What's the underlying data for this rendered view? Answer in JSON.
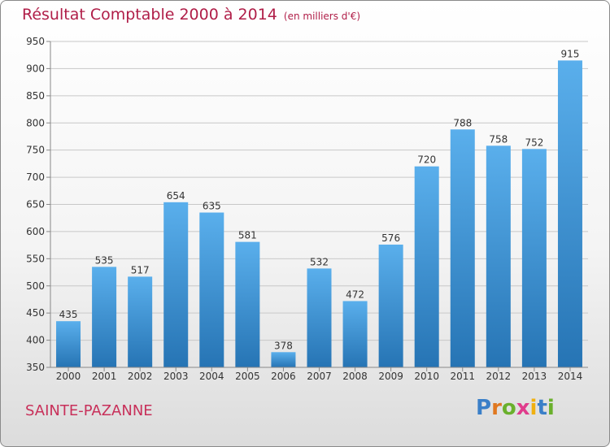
{
  "header": {
    "title": "Résultat Comptable 2000 à 2014",
    "unit": "(en milliers d'€)"
  },
  "footer": {
    "place": "SAINTE-PAZANNE",
    "logo_letters": [
      "P",
      "r",
      "o",
      "x",
      "i",
      "t",
      "i"
    ],
    "logo_colors": [
      "#3a7fc8",
      "#e07820",
      "#6ab02c",
      "#e03c8c",
      "#f0b010",
      "#3a7fc8",
      "#6ab02c"
    ]
  },
  "colors": {
    "title": "#b01e48",
    "bar_top": "#5aafec",
    "bar_bottom": "#2674b4",
    "grid": "#c8c8c8",
    "axis_text": "#333333"
  },
  "chart_data": {
    "type": "bar",
    "title": "Résultat Comptable 2000 à 2014",
    "categories": [
      "2000",
      "2001",
      "2002",
      "2003",
      "2004",
      "2005",
      "2006",
      "2007",
      "2008",
      "2009",
      "2010",
      "2011",
      "2012",
      "2013",
      "2014"
    ],
    "values": [
      435,
      535,
      517,
      654,
      635,
      581,
      378,
      532,
      472,
      576,
      720,
      788,
      758,
      752,
      915
    ],
    "ylim": [
      350,
      950
    ],
    "yticks": [
      350,
      400,
      450,
      500,
      550,
      600,
      650,
      700,
      750,
      800,
      850,
      900,
      950
    ],
    "grid": true,
    "data_labels": true
  }
}
